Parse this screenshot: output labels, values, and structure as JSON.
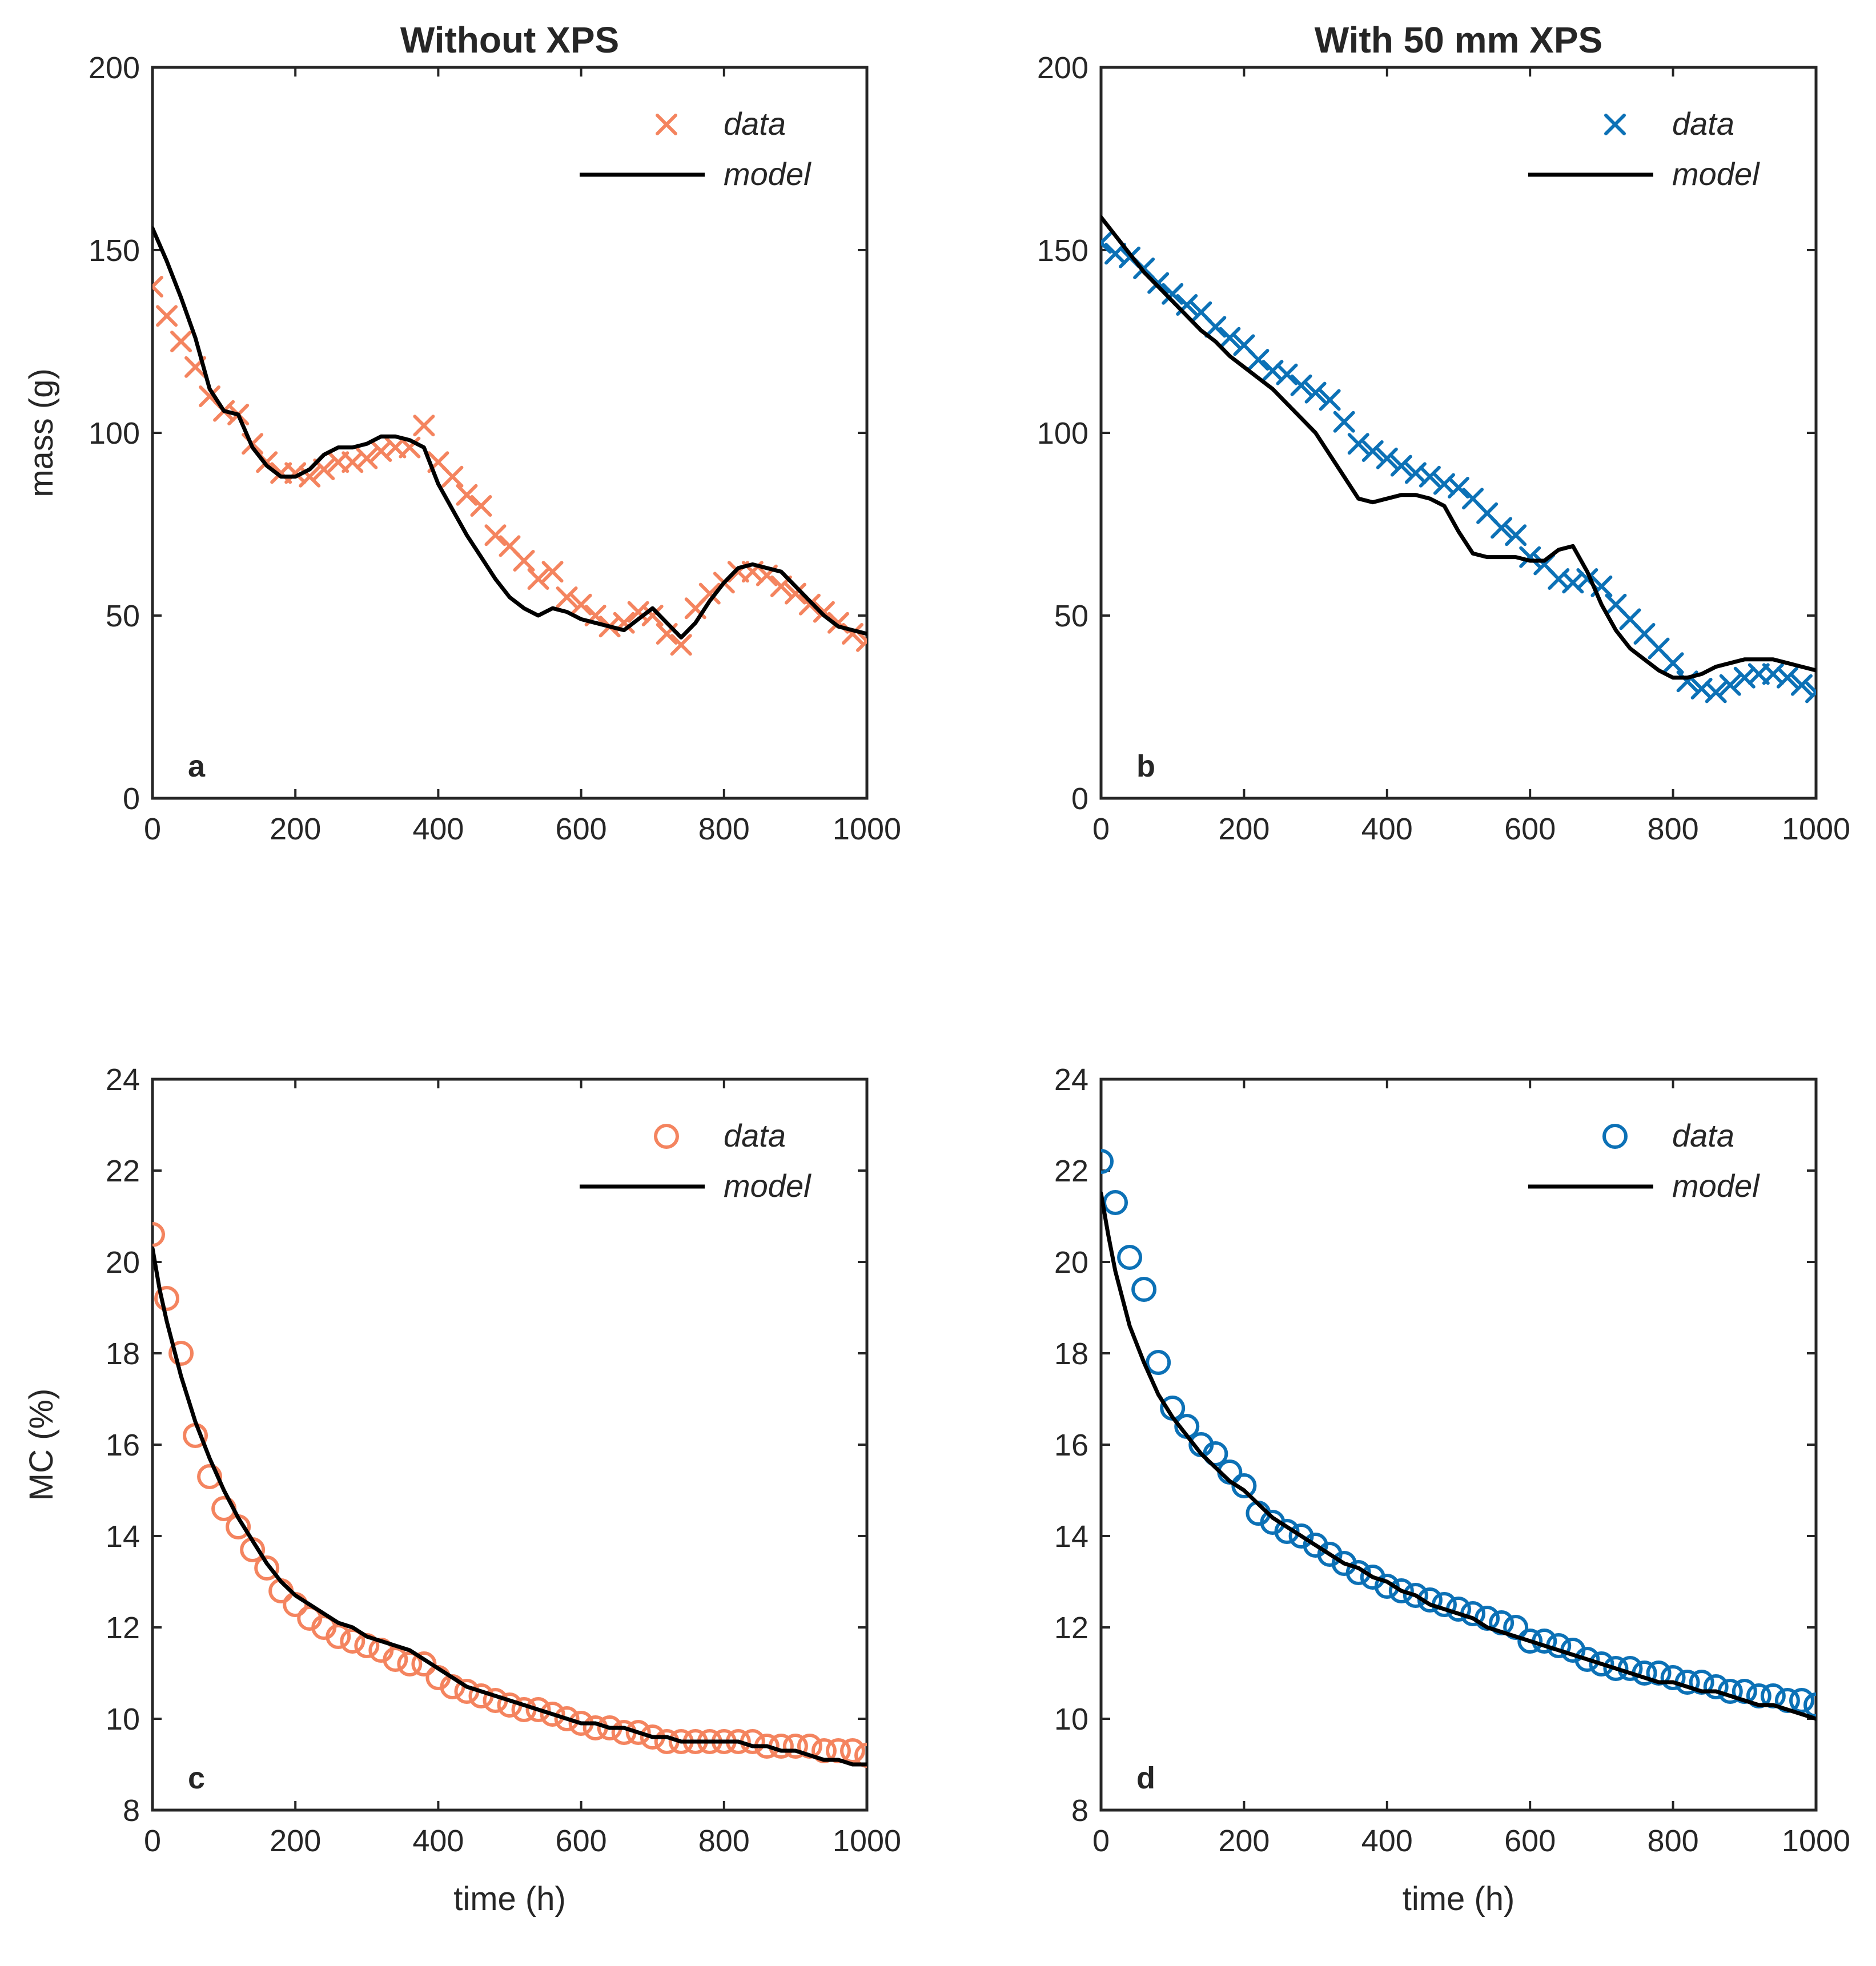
{
  "colors": {
    "without": "#f4845f",
    "with": "#0c71b6",
    "model": "#000000"
  },
  "chart_data": [
    {
      "type": "line",
      "panel": "a",
      "title": "Without XPS",
      "xlabel": "",
      "ylabel": "mass (g)",
      "xlim": [
        0,
        1000
      ],
      "ylim": [
        0,
        200
      ],
      "xticks": [
        "0",
        "200",
        "400",
        "600",
        "800",
        "1000"
      ],
      "yticks": [
        "0",
        "50",
        "100",
        "150",
        "200"
      ],
      "legend": {
        "position": "top-right",
        "data": "data",
        "model": "model"
      },
      "data_marker": "x",
      "data_series": {
        "x": [
          0,
          20,
          40,
          60,
          80,
          100,
          120,
          140,
          160,
          180,
          200,
          220,
          240,
          260,
          280,
          300,
          320,
          340,
          360,
          380,
          400,
          420,
          440,
          460,
          480,
          500,
          520,
          540,
          560,
          580,
          600,
          620,
          640,
          660,
          680,
          700,
          720,
          740,
          760,
          780,
          800,
          820,
          840,
          860,
          880,
          900,
          920,
          940,
          960,
          980,
          1000
        ],
        "y": [
          140,
          132,
          125,
          118,
          110,
          106,
          105,
          97,
          92,
          89,
          89,
          88,
          90,
          92,
          92,
          93,
          95,
          96,
          96,
          102,
          92,
          88,
          83,
          80,
          72,
          69,
          65,
          60,
          62,
          55,
          53,
          50,
          47,
          48,
          51,
          50,
          45,
          42,
          52,
          56,
          59,
          62,
          62,
          61,
          58,
          56,
          53,
          51,
          48,
          45,
          43
        ]
      },
      "model_series": {
        "x": [
          0,
          20,
          40,
          60,
          80,
          100,
          120,
          140,
          160,
          180,
          200,
          220,
          240,
          260,
          280,
          300,
          320,
          340,
          360,
          380,
          400,
          420,
          440,
          460,
          480,
          500,
          520,
          540,
          560,
          580,
          600,
          620,
          640,
          660,
          680,
          700,
          720,
          740,
          760,
          780,
          800,
          820,
          840,
          860,
          880,
          900,
          920,
          940,
          960,
          980,
          1000
        ],
        "y": [
          156,
          147,
          137,
          126,
          112,
          106,
          105,
          96,
          91,
          88,
          88,
          90,
          94,
          96,
          96,
          97,
          99,
          99,
          98,
          96,
          86,
          79,
          72,
          66,
          60,
          55,
          52,
          50,
          52,
          51,
          49,
          48,
          47,
          46,
          49,
          52,
          48,
          44,
          48,
          54,
          59,
          63,
          64,
          63,
          62,
          58,
          54,
          50,
          47,
          46,
          45
        ]
      }
    },
    {
      "type": "line",
      "panel": "b",
      "title": "With 50 mm XPS",
      "xlabel": "",
      "ylabel": "",
      "xlim": [
        0,
        1000
      ],
      "ylim": [
        0,
        200
      ],
      "xticks": [
        "0",
        "200",
        "400",
        "600",
        "800",
        "1000"
      ],
      "yticks": [
        "0",
        "50",
        "100",
        "150",
        "200"
      ],
      "legend": {
        "position": "top-right",
        "data": "data",
        "model": "model"
      },
      "data_marker": "x",
      "data_series": {
        "x": [
          0,
          20,
          40,
          60,
          80,
          100,
          120,
          140,
          160,
          180,
          200,
          220,
          240,
          260,
          280,
          300,
          320,
          340,
          360,
          380,
          400,
          420,
          440,
          460,
          480,
          500,
          520,
          540,
          560,
          580,
          600,
          620,
          640,
          660,
          680,
          700,
          720,
          740,
          760,
          780,
          800,
          820,
          840,
          860,
          880,
          900,
          920,
          940,
          960,
          980,
          1000
        ],
        "y": [
          152,
          149,
          148,
          145,
          141,
          138,
          135,
          133,
          129,
          126,
          124,
          120,
          117,
          116,
          113,
          111,
          109,
          103,
          97,
          95,
          93,
          91,
          89,
          88,
          86,
          85,
          82,
          78,
          74,
          72,
          66,
          64,
          60,
          59,
          60,
          58,
          53,
          49,
          45,
          41,
          37,
          32,
          30,
          29,
          31,
          33,
          34,
          34,
          33,
          31,
          29
        ]
      },
      "model_series": {
        "x": [
          0,
          20,
          40,
          60,
          80,
          100,
          120,
          140,
          160,
          180,
          200,
          220,
          240,
          260,
          280,
          300,
          320,
          340,
          360,
          380,
          400,
          420,
          440,
          460,
          480,
          500,
          520,
          540,
          560,
          580,
          600,
          620,
          640,
          660,
          680,
          700,
          720,
          740,
          760,
          780,
          800,
          820,
          840,
          860,
          880,
          900,
          920,
          940,
          960,
          980,
          1000
        ],
        "y": [
          159,
          154,
          149,
          144,
          140,
          136,
          132,
          128,
          125,
          121,
          118,
          115,
          112,
          108,
          104,
          100,
          94,
          88,
          82,
          81,
          82,
          83,
          83,
          82,
          80,
          73,
          67,
          66,
          66,
          66,
          65,
          65,
          68,
          69,
          62,
          53,
          46,
          41,
          38,
          35,
          33,
          33,
          34,
          36,
          37,
          38,
          38,
          38,
          37,
          36,
          35
        ]
      }
    },
    {
      "type": "line",
      "panel": "c",
      "title": "",
      "xlabel": "time (h)",
      "ylabel": "MC (%)",
      "xlim": [
        0,
        1000
      ],
      "ylim": [
        8,
        24
      ],
      "xticks": [
        "0",
        "200",
        "400",
        "600",
        "800",
        "1000"
      ],
      "yticks": [
        "8",
        "10",
        "12",
        "14",
        "16",
        "18",
        "20",
        "22",
        "24"
      ],
      "legend": {
        "position": "top-right",
        "data": "data",
        "model": "model"
      },
      "data_marker": "o",
      "data_series": {
        "x": [
          0,
          20,
          40,
          60,
          80,
          100,
          120,
          140,
          160,
          180,
          200,
          220,
          240,
          260,
          280,
          300,
          320,
          340,
          360,
          380,
          400,
          420,
          440,
          460,
          480,
          500,
          520,
          540,
          560,
          580,
          600,
          620,
          640,
          660,
          680,
          700,
          720,
          740,
          760,
          780,
          800,
          820,
          840,
          860,
          880,
          900,
          920,
          940,
          960,
          980,
          1000
        ],
        "y": [
          20.6,
          19.2,
          18.0,
          16.2,
          15.3,
          14.6,
          14.2,
          13.7,
          13.3,
          12.8,
          12.5,
          12.2,
          12.0,
          11.8,
          11.7,
          11.6,
          11.5,
          11.3,
          11.2,
          11.2,
          10.9,
          10.7,
          10.6,
          10.5,
          10.4,
          10.3,
          10.2,
          10.2,
          10.1,
          10.0,
          9.9,
          9.8,
          9.8,
          9.7,
          9.7,
          9.6,
          9.5,
          9.5,
          9.5,
          9.5,
          9.5,
          9.5,
          9.5,
          9.4,
          9.4,
          9.4,
          9.4,
          9.3,
          9.3,
          9.3,
          9.2
        ]
      },
      "model_series": {
        "x": [
          0,
          10,
          20,
          40,
          60,
          80,
          100,
          120,
          140,
          160,
          180,
          200,
          220,
          240,
          260,
          280,
          300,
          320,
          340,
          360,
          380,
          400,
          420,
          440,
          460,
          480,
          500,
          520,
          540,
          560,
          580,
          600,
          620,
          640,
          660,
          680,
          700,
          720,
          740,
          760,
          780,
          800,
          820,
          840,
          860,
          880,
          900,
          920,
          940,
          960,
          980,
          1000
        ],
        "y": [
          20.3,
          19.4,
          18.7,
          17.5,
          16.5,
          15.7,
          15.0,
          14.4,
          13.9,
          13.4,
          13.0,
          12.7,
          12.5,
          12.3,
          12.1,
          12.0,
          11.8,
          11.7,
          11.6,
          11.5,
          11.3,
          11.1,
          10.9,
          10.7,
          10.6,
          10.5,
          10.4,
          10.3,
          10.2,
          10.1,
          10.0,
          9.9,
          9.9,
          9.8,
          9.8,
          9.7,
          9.6,
          9.6,
          9.5,
          9.5,
          9.5,
          9.5,
          9.5,
          9.4,
          9.4,
          9.3,
          9.3,
          9.2,
          9.1,
          9.1,
          9.0,
          9.0
        ]
      }
    },
    {
      "type": "line",
      "panel": "d",
      "title": "",
      "xlabel": "time (h)",
      "ylabel": "",
      "xlim": [
        0,
        1000
      ],
      "ylim": [
        8,
        24
      ],
      "xticks": [
        "0",
        "200",
        "400",
        "600",
        "800",
        "1000"
      ],
      "yticks": [
        "8",
        "10",
        "12",
        "14",
        "16",
        "18",
        "20",
        "22",
        "24"
      ],
      "legend": {
        "position": "top-right",
        "data": "data",
        "model": "model"
      },
      "data_marker": "o",
      "data_series": {
        "x": [
          0,
          20,
          40,
          60,
          80,
          100,
          120,
          140,
          160,
          180,
          200,
          220,
          240,
          260,
          280,
          300,
          320,
          340,
          360,
          380,
          400,
          420,
          440,
          460,
          480,
          500,
          520,
          540,
          560,
          580,
          600,
          620,
          640,
          660,
          680,
          700,
          720,
          740,
          760,
          780,
          800,
          820,
          840,
          860,
          880,
          900,
          920,
          940,
          960,
          980,
          1000
        ],
        "y": [
          22.2,
          21.3,
          20.1,
          19.4,
          17.8,
          16.8,
          16.4,
          16.0,
          15.8,
          15.4,
          15.1,
          14.5,
          14.3,
          14.1,
          14.0,
          13.8,
          13.6,
          13.4,
          13.2,
          13.1,
          12.9,
          12.8,
          12.7,
          12.6,
          12.5,
          12.4,
          12.3,
          12.2,
          12.1,
          12.0,
          11.7,
          11.7,
          11.6,
          11.5,
          11.3,
          11.2,
          11.1,
          11.1,
          11.0,
          11.0,
          10.9,
          10.8,
          10.8,
          10.7,
          10.6,
          10.6,
          10.5,
          10.5,
          10.4,
          10.4,
          10.3
        ]
      },
      "model_series": {
        "x": [
          0,
          10,
          20,
          40,
          60,
          80,
          100,
          120,
          140,
          160,
          180,
          200,
          220,
          240,
          260,
          280,
          300,
          320,
          340,
          360,
          380,
          400,
          420,
          440,
          460,
          480,
          500,
          520,
          540,
          560,
          580,
          600,
          620,
          640,
          660,
          680,
          700,
          720,
          740,
          760,
          780,
          800,
          820,
          840,
          860,
          880,
          900,
          920,
          940,
          960,
          980,
          1000
        ],
        "y": [
          21.5,
          20.6,
          19.8,
          18.6,
          17.8,
          17.1,
          16.6,
          16.2,
          15.8,
          15.5,
          15.2,
          15.0,
          14.7,
          14.4,
          14.2,
          14.0,
          13.8,
          13.6,
          13.4,
          13.3,
          13.1,
          13.0,
          12.8,
          12.7,
          12.5,
          12.4,
          12.3,
          12.2,
          12.0,
          11.9,
          11.8,
          11.7,
          11.6,
          11.5,
          11.4,
          11.3,
          11.2,
          11.1,
          11.0,
          10.9,
          10.8,
          10.8,
          10.7,
          10.6,
          10.6,
          10.5,
          10.4,
          10.3,
          10.3,
          10.2,
          10.1,
          10.0
        ]
      }
    }
  ]
}
